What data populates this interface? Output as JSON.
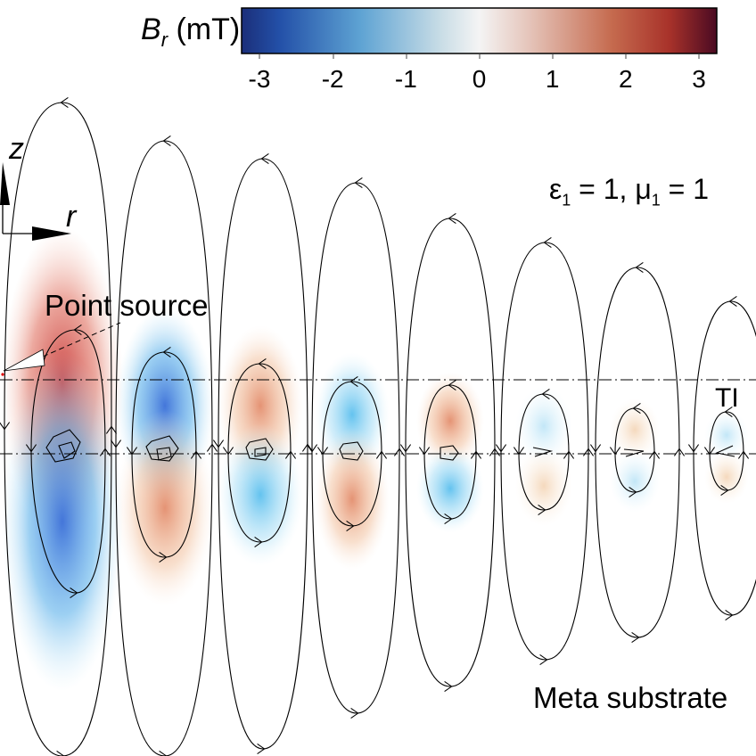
{
  "colorbar": {
    "quantity": "B",
    "subscript": "r",
    "unit": "(mT)",
    "ticks": [
      "-3",
      "-2",
      "-1",
      "0",
      "1",
      "2",
      "3"
    ],
    "colors": {
      "negative": "#1f3f9a",
      "mid_negative": "#5ea9d6",
      "zero": "#f5f5f5",
      "mid_positive": "#d07a5e",
      "positive": "#5a0a1f"
    }
  },
  "axes": {
    "z_label": "z",
    "r_label": "r"
  },
  "labels": {
    "point_source": "Point source",
    "ti": "TI",
    "meta_substrate": "Meta substrate",
    "medium": {
      "eps_symbol": "ε",
      "eps_sub": "1",
      "eps_value": " = 1, ",
      "mu_symbol": "μ",
      "mu_sub": "1",
      "mu_value": " = 1"
    }
  },
  "field_colors": {
    "red": "#c8453c",
    "blue": "#3f8fe0",
    "orange": "#e8a070",
    "cyan": "#7ecdf0"
  }
}
